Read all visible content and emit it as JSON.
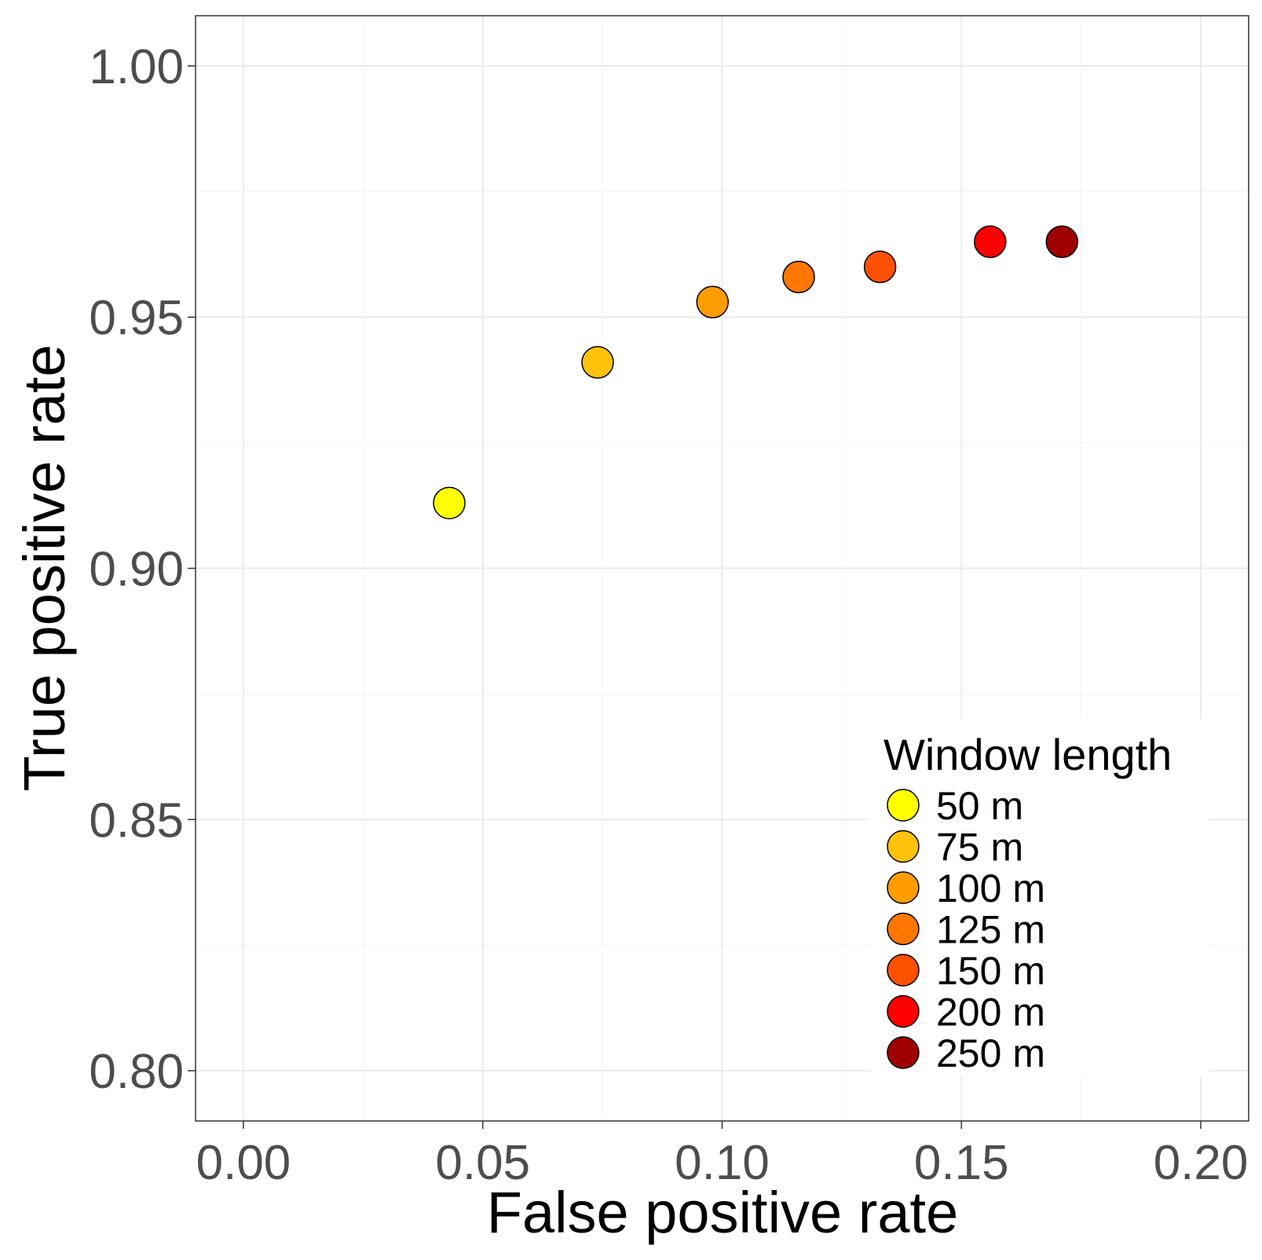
{
  "chart_data": {
    "type": "scatter",
    "xlabel": "False positive rate",
    "ylabel": "True positive rate",
    "xlim": [
      -0.01,
      0.21
    ],
    "ylim": [
      0.79,
      1.01
    ],
    "x_ticks": [
      0.0,
      0.05,
      0.1,
      0.15,
      0.2
    ],
    "x_tick_labels": [
      "0.00",
      "0.05",
      "0.10",
      "0.15",
      "0.20"
    ],
    "y_ticks": [
      0.8,
      0.85,
      0.9,
      0.95,
      1.0
    ],
    "y_tick_labels": [
      "0.80",
      "0.85",
      "0.90",
      "0.95",
      "1.00"
    ],
    "grid": true,
    "legend": {
      "title": "Window length",
      "position": "bottom-right inside"
    },
    "series": [
      {
        "name": "50 m",
        "x": 0.043,
        "y": 0.913,
        "color": "#ffff00"
      },
      {
        "name": "75 m",
        "x": 0.074,
        "y": 0.941,
        "color": "#ffc20a"
      },
      {
        "name": "100 m",
        "x": 0.098,
        "y": 0.953,
        "color": "#ff9d00"
      },
      {
        "name": "125 m",
        "x": 0.116,
        "y": 0.958,
        "color": "#ff7700"
      },
      {
        "name": "150 m",
        "x": 0.133,
        "y": 0.96,
        "color": "#ff5000"
      },
      {
        "name": "200 m",
        "x": 0.156,
        "y": 0.965,
        "color": "#ff0000"
      },
      {
        "name": "250 m",
        "x": 0.171,
        "y": 0.965,
        "color": "#a00000"
      }
    ]
  }
}
